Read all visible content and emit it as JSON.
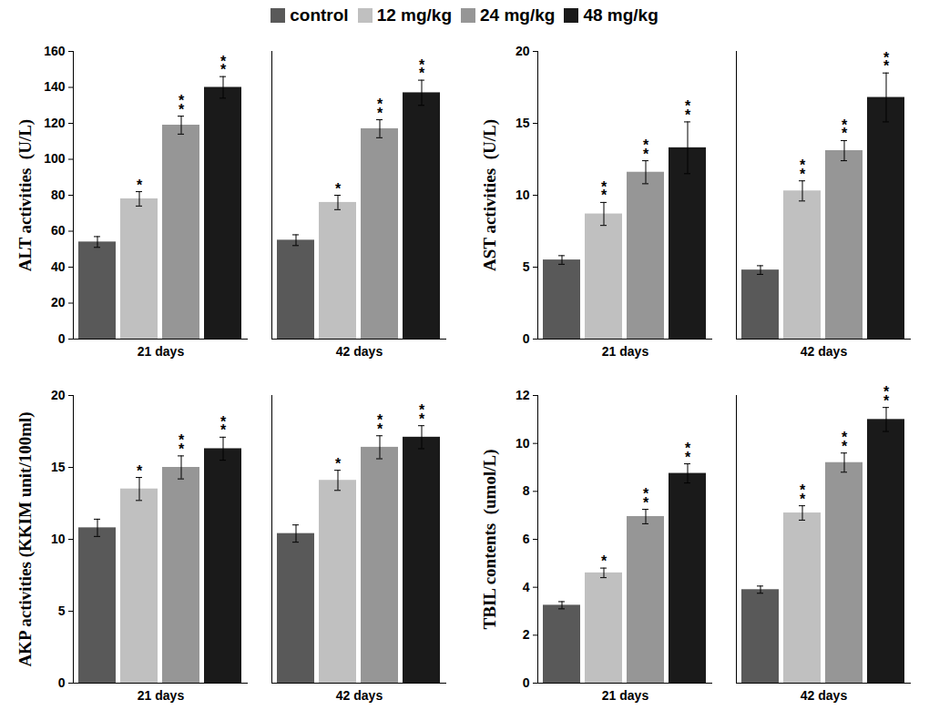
{
  "chart_data": [
    {
      "type": "bar",
      "y_label": "ALT activities  (U/L)",
      "categories": [
        "21 days",
        "42 days"
      ],
      "ylim": [
        0,
        160
      ],
      "yticks": [
        0,
        20,
        40,
        60,
        80,
        100,
        120,
        140,
        160
      ],
      "series": [
        {
          "name": "control",
          "color": "#595959",
          "values": [
            54,
            55
          ],
          "errors": [
            3,
            3
          ],
          "significance": [
            null,
            null
          ]
        },
        {
          "name": "12 mg/kg",
          "color": "#c0c0c0",
          "values": [
            78,
            76
          ],
          "errors": [
            4,
            4
          ],
          "significance": [
            "*",
            "*"
          ]
        },
        {
          "name": "24 mg/kg",
          "color": "#969696",
          "values": [
            119,
            117
          ],
          "errors": [
            5,
            5
          ],
          "significance": [
            "**",
            "**"
          ]
        },
        {
          "name": "48 mg/kg",
          "color": "#1a1a1a",
          "values": [
            140,
            137
          ],
          "errors": [
            6,
            7
          ],
          "significance": [
            "**",
            "**"
          ]
        }
      ]
    },
    {
      "type": "bar",
      "y_label": "AST activities  (U/L)",
      "categories": [
        "21 days",
        "42 days"
      ],
      "ylim": [
        0,
        20
      ],
      "yticks": [
        0,
        5,
        10,
        15,
        20
      ],
      "series": [
        {
          "name": "control",
          "color": "#595959",
          "values": [
            5.5,
            4.8
          ],
          "errors": [
            0.3,
            0.3
          ],
          "significance": [
            null,
            null
          ]
        },
        {
          "name": "12 mg/kg",
          "color": "#c0c0c0",
          "values": [
            8.7,
            10.3
          ],
          "errors": [
            0.8,
            0.7
          ],
          "significance": [
            "**",
            "**"
          ]
        },
        {
          "name": "24 mg/kg",
          "color": "#969696",
          "values": [
            11.6,
            13.1
          ],
          "errors": [
            0.8,
            0.7
          ],
          "significance": [
            "**",
            "**"
          ]
        },
        {
          "name": "48 mg/kg",
          "color": "#1a1a1a",
          "values": [
            13.3,
            16.8
          ],
          "errors": [
            1.8,
            1.7
          ],
          "significance": [
            "**",
            "**"
          ]
        }
      ]
    },
    {
      "type": "bar",
      "y_label": "AKP activities (KKIM unit/100ml)",
      "categories": [
        "21 days",
        "42 days"
      ],
      "ylim": [
        0,
        20
      ],
      "yticks": [
        0,
        5,
        10,
        15,
        20
      ],
      "series": [
        {
          "name": "control",
          "color": "#595959",
          "values": [
            10.8,
            10.4
          ],
          "errors": [
            0.6,
            0.6
          ],
          "significance": [
            null,
            null
          ]
        },
        {
          "name": "12 mg/kg",
          "color": "#c0c0c0",
          "values": [
            13.5,
            14.1
          ],
          "errors": [
            0.8,
            0.7
          ],
          "significance": [
            "*",
            "*"
          ]
        },
        {
          "name": "24 mg/kg",
          "color": "#969696",
          "values": [
            15.0,
            16.4
          ],
          "errors": [
            0.8,
            0.8
          ],
          "significance": [
            "**",
            "**"
          ]
        },
        {
          "name": "48 mg/kg",
          "color": "#1a1a1a",
          "values": [
            16.3,
            17.1
          ],
          "errors": [
            0.8,
            0.8
          ],
          "significance": [
            "**",
            "**"
          ]
        }
      ]
    },
    {
      "type": "bar",
      "y_label": "TBIL contents  (umol/L)",
      "categories": [
        "21 days",
        "42 days"
      ],
      "ylim": [
        0,
        12
      ],
      "yticks": [
        0,
        2,
        4,
        6,
        8,
        10,
        12
      ],
      "series": [
        {
          "name": "control",
          "color": "#595959",
          "values": [
            3.25,
            3.9
          ],
          "errors": [
            0.15,
            0.15
          ],
          "significance": [
            null,
            null
          ]
        },
        {
          "name": "12 mg/kg",
          "color": "#c0c0c0",
          "values": [
            4.6,
            7.1
          ],
          "errors": [
            0.2,
            0.3
          ],
          "significance": [
            "*",
            "**"
          ]
        },
        {
          "name": "24 mg/kg",
          "color": "#969696",
          "values": [
            6.95,
            9.2
          ],
          "errors": [
            0.3,
            0.4
          ],
          "significance": [
            "**",
            "**"
          ]
        },
        {
          "name": "48 mg/kg",
          "color": "#1a1a1a",
          "values": [
            8.75,
            11.0
          ],
          "errors": [
            0.4,
            0.5
          ],
          "significance": [
            "**",
            "**"
          ]
        }
      ]
    }
  ]
}
